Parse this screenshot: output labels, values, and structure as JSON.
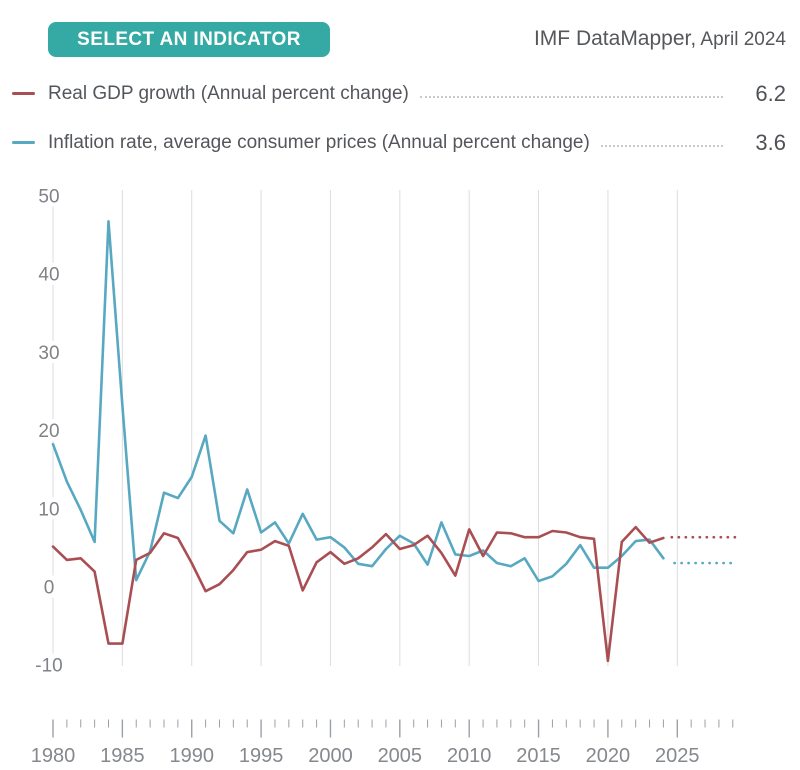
{
  "header": {
    "select_button_label": "SELECT AN INDICATOR",
    "title_main": "IMF DataMapper,",
    "title_suffix": " April 2024"
  },
  "legend": {
    "items": [
      {
        "key": "gdp",
        "label": "Real GDP growth (Annual percent change)",
        "value": "6.2",
        "color": "#A94E53"
      },
      {
        "key": "inflation",
        "label": "Inflation rate, average consumer prices (Annual percent change)",
        "value": "3.6",
        "color": "#58A8C2"
      }
    ]
  },
  "colors": {
    "button": "#35A9A4",
    "gdp_line": "#A94E53",
    "inflation_line": "#58A8C2",
    "gridline": "#DCDDDE",
    "tick": "#9BA0A6",
    "axis_label": "#85888D",
    "y_label": "#7F8287",
    "text": "#53565B"
  },
  "chart_data": {
    "type": "line",
    "title": "",
    "xlabel": "",
    "ylabel": "",
    "x": [
      1980,
      1981,
      1982,
      1983,
      1984,
      1985,
      1986,
      1987,
      1988,
      1989,
      1990,
      1991,
      1992,
      1993,
      1994,
      1995,
      1996,
      1997,
      1998,
      1999,
      2000,
      2001,
      2002,
      2003,
      2004,
      2005,
      2006,
      2007,
      2008,
      2009,
      2010,
      2011,
      2012,
      2013,
      2014,
      2015,
      2016,
      2017,
      2018,
      2019,
      2020,
      2021,
      2022,
      2023,
      2024
    ],
    "series": [
      {
        "key": "gdp",
        "name": "Real GDP growth (Annual percent change)",
        "color": "#A94E53",
        "current_value": 6.2,
        "values": [
          5.1,
          3.4,
          3.6,
          1.9,
          -7.3,
          -7.3,
          3.4,
          4.3,
          6.8,
          6.2,
          3.0,
          -0.6,
          0.3,
          2.1,
          4.4,
          4.7,
          5.8,
          5.2,
          -0.5,
          3.1,
          4.4,
          2.9,
          3.6,
          5.0,
          6.7,
          4.8,
          5.3,
          6.5,
          4.3,
          1.4,
          7.3,
          3.9,
          6.9,
          6.8,
          6.3,
          6.3,
          7.1,
          6.9,
          6.3,
          6.1,
          -9.5,
          5.7,
          7.6,
          5.6,
          6.2
        ]
      },
      {
        "key": "inflation",
        "name": "Inflation rate, average consumer prices (Annual percent change)",
        "color": "#58A8C2",
        "current_value": 3.6,
        "values": [
          18.2,
          13.4,
          9.8,
          5.7,
          46.7,
          23.1,
          0.8,
          4.5,
          12.0,
          11.3,
          14.0,
          19.3,
          8.4,
          6.8,
          12.4,
          6.9,
          8.2,
          5.5,
          9.3,
          6.0,
          6.3,
          5.0,
          2.9,
          2.6,
          4.8,
          6.5,
          5.5,
          2.8,
          8.2,
          4.1,
          3.9,
          4.6,
          3.0,
          2.6,
          3.6,
          0.7,
          1.3,
          2.9,
          5.3,
          2.4,
          2.4,
          3.9,
          5.8,
          6.0,
          3.6
        ]
      }
    ],
    "projections": [
      {
        "key": "gdp",
        "style": "dotted",
        "value": 6.3,
        "from_year": 2024.6,
        "to_year": 2029.3
      },
      {
        "key": "inflation",
        "style": "dotted",
        "value": 3.0,
        "from_year": 2024.8,
        "to_year": 2029.3
      }
    ],
    "ylim": [
      -10,
      50
    ],
    "y_ticks": [
      50,
      40,
      30,
      20,
      10,
      0,
      -10
    ],
    "x_gridline_years": [
      1980,
      1985,
      1990,
      1995,
      2000,
      2005,
      2010,
      2015,
      2020,
      2025
    ],
    "x_label_years": [
      1980,
      1985,
      1990,
      1995,
      2000,
      2005,
      2010,
      2015,
      2020,
      2025
    ],
    "x_tick_year_range": [
      1980,
      2029
    ],
    "grid": "vertical-only",
    "legend_position": "top"
  }
}
